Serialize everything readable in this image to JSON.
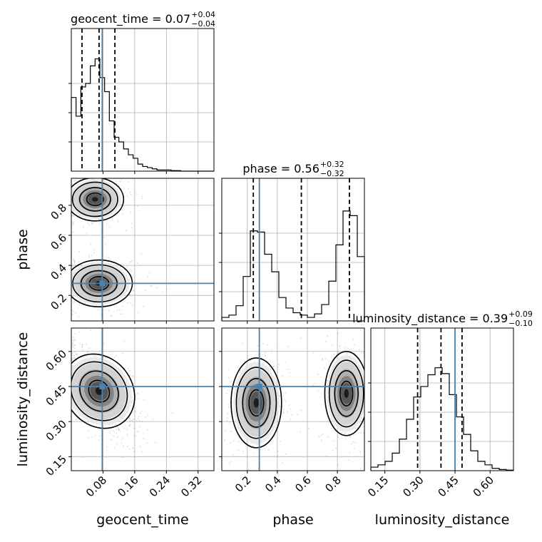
{
  "chart_data": {
    "type": "corner",
    "parameters": [
      "geocent_time",
      "phase",
      "luminosity_distance"
    ],
    "axis_labels": {
      "x": [
        "geocent_time",
        "phase",
        "luminosity_distance"
      ],
      "y": [
        "phase",
        "luminosity_distance"
      ]
    },
    "titles": [
      {
        "param": "geocent_time",
        "text": "geocent_time = 0.07",
        "plus": "+0.04",
        "minus": "−0.04"
      },
      {
        "param": "phase",
        "text": "phase = 0.56",
        "plus": "+0.32",
        "minus": "−0.32"
      },
      {
        "param": "luminosity_distance",
        "text": "luminosity_distance = 0.39",
        "plus": "+0.09",
        "minus": "−0.10"
      }
    ],
    "ranges": {
      "geocent_time": [
        0.0,
        0.36
      ],
      "phase": [
        0.03,
        0.98
      ],
      "luminosity_distance": [
        0.09,
        0.7
      ]
    },
    "ticks": {
      "geocent_time": [
        0.08,
        0.16,
        0.24,
        0.32
      ],
      "phase": [
        0.2,
        0.4,
        0.6,
        0.8
      ],
      "luminosity_distance": [
        0.15,
        0.3,
        0.45,
        0.6
      ]
    },
    "tick_labels": {
      "geocent_time": [
        "0.08",
        "0.16",
        "0.24",
        "0.32"
      ],
      "phase": [
        "0.2",
        "0.4",
        "0.6",
        "0.8"
      ],
      "luminosity_distance": [
        "0.15",
        "0.30",
        "0.45",
        "0.60"
      ]
    },
    "truths": {
      "geocent_time": 0.078,
      "phase": 0.28,
      "luminosity_distance": 0.45
    },
    "quantiles": {
      "geocent_time": [
        0.027,
        0.07,
        0.11
      ],
      "phase": [
        0.24,
        0.56,
        0.88
      ],
      "luminosity_distance": [
        0.29,
        0.39,
        0.48
      ]
    },
    "histograms": {
      "geocent_time": [
        0.63,
        0.47,
        0.72,
        0.75,
        0.9,
        0.96,
        0.8,
        0.68,
        0.43,
        0.29,
        0.25,
        0.19,
        0.14,
        0.11,
        0.06,
        0.04,
        0.03,
        0.02,
        0.01,
        0.01,
        0.01,
        0.005,
        0.005,
        0.0,
        0.0,
        0.0,
        0.0,
        0.0,
        0.0,
        0.0
      ],
      "phase": [
        0.03,
        0.05,
        0.13,
        0.38,
        0.77,
        0.76,
        0.57,
        0.42,
        0.2,
        0.11,
        0.07,
        0.05,
        0.03,
        0.06,
        0.14,
        0.34,
        0.65,
        0.94,
        0.9,
        0.55
      ],
      "luminosity_distance": [
        0.03,
        0.05,
        0.08,
        0.15,
        0.27,
        0.44,
        0.63,
        0.72,
        0.82,
        0.88,
        0.83,
        0.65,
        0.46,
        0.31,
        0.17,
        0.08,
        0.05,
        0.02,
        0.01,
        0.005
      ]
    },
    "grid": true,
    "truth_color": "#4682b4",
    "contour_color": "#000000"
  }
}
